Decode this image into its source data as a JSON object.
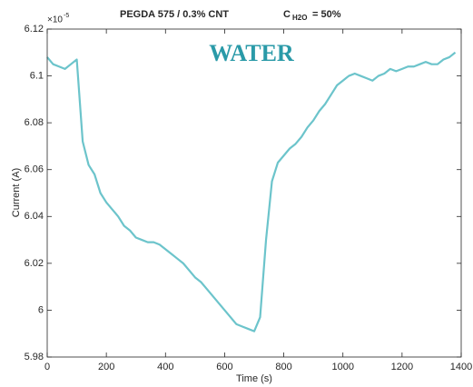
{
  "chart_data": {
    "type": "line",
    "title": {
      "main": "PEGDA 575 / 0.3% CNT",
      "c": "C",
      "c_sub": "H2O",
      "c_rest": "= 50%"
    },
    "annotation": "WATER",
    "xlabel": "Time (s)",
    "ylabel": "Current (A)",
    "y_multiplier": {
      "base": "×10",
      "exponent": "-5"
    },
    "xlim": [
      0,
      1400
    ],
    "xticks": [
      0,
      200,
      400,
      600,
      800,
      1000,
      1200,
      1400
    ],
    "ylim": [
      5.98,
      6.12
    ],
    "yticks": [
      5.98,
      6,
      6.02,
      6.04,
      6.06,
      6.08,
      6.1,
      6.12
    ],
    "x": [
      0,
      20,
      40,
      60,
      80,
      100,
      120,
      140,
      160,
      180,
      200,
      220,
      240,
      260,
      280,
      300,
      320,
      340,
      360,
      380,
      400,
      420,
      440,
      460,
      480,
      500,
      520,
      540,
      560,
      580,
      600,
      620,
      640,
      660,
      680,
      700,
      720,
      740,
      760,
      780,
      800,
      820,
      840,
      860,
      880,
      900,
      920,
      940,
      960,
      980,
      1000,
      1020,
      1040,
      1060,
      1080,
      1100,
      1120,
      1140,
      1160,
      1180,
      1200,
      1220,
      1240,
      1260,
      1280,
      1300,
      1320,
      1340,
      1360,
      1380
    ],
    "series": [
      {
        "color": "#6cc4cb",
        "values": [
          6.108,
          6.105,
          6.104,
          6.103,
          6.105,
          6.107,
          6.072,
          6.062,
          6.058,
          6.05,
          6.046,
          6.043,
          6.04,
          6.036,
          6.034,
          6.031,
          6.03,
          6.029,
          6.029,
          6.028,
          6.026,
          6.024,
          6.022,
          6.02,
          6.017,
          6.014,
          6.012,
          6.009,
          6.006,
          6.003,
          6.0,
          5.997,
          5.994,
          5.993,
          5.992,
          5.991,
          5.997,
          6.03,
          6.055,
          6.063,
          6.066,
          6.069,
          6.071,
          6.074,
          6.078,
          6.081,
          6.085,
          6.088,
          6.092,
          6.096,
          6.098,
          6.1,
          6.101,
          6.1,
          6.099,
          6.098,
          6.1,
          6.101,
          6.103,
          6.102,
          6.103,
          6.104,
          6.104,
          6.105,
          6.106,
          6.105,
          6.105,
          6.107,
          6.108,
          6.11
        ]
      }
    ]
  }
}
